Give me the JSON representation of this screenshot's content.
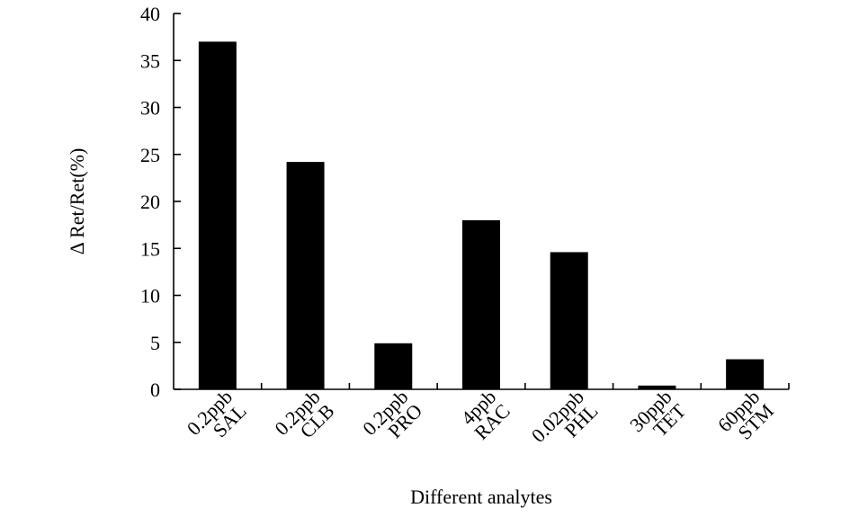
{
  "chart_data": {
    "type": "bar",
    "categories": [
      {
        "line1": "0.2ppb",
        "line2": "SAL"
      },
      {
        "line1": "0.2ppb",
        "line2": "CLB"
      },
      {
        "line1": "0.2ppb",
        "line2": "PRO"
      },
      {
        "line1": "4ppb",
        "line2": "RAC"
      },
      {
        "line1": "0.02ppb",
        "line2": "PHL"
      },
      {
        "line1": "30ppb",
        "line2": "TET"
      },
      {
        "line1": "60ppb",
        "line2": "STM"
      }
    ],
    "values": [
      37,
      24.2,
      4.9,
      18,
      14.6,
      0.4,
      3.2
    ],
    "xlabel": "Different analytes",
    "ylabel": "Δ Ret/Ret(%)",
    "ylim": [
      0,
      40
    ],
    "yticks": [
      0,
      5,
      10,
      15,
      20,
      25,
      30,
      35,
      40
    ],
    "grid": false,
    "bar_color": "#000000"
  }
}
